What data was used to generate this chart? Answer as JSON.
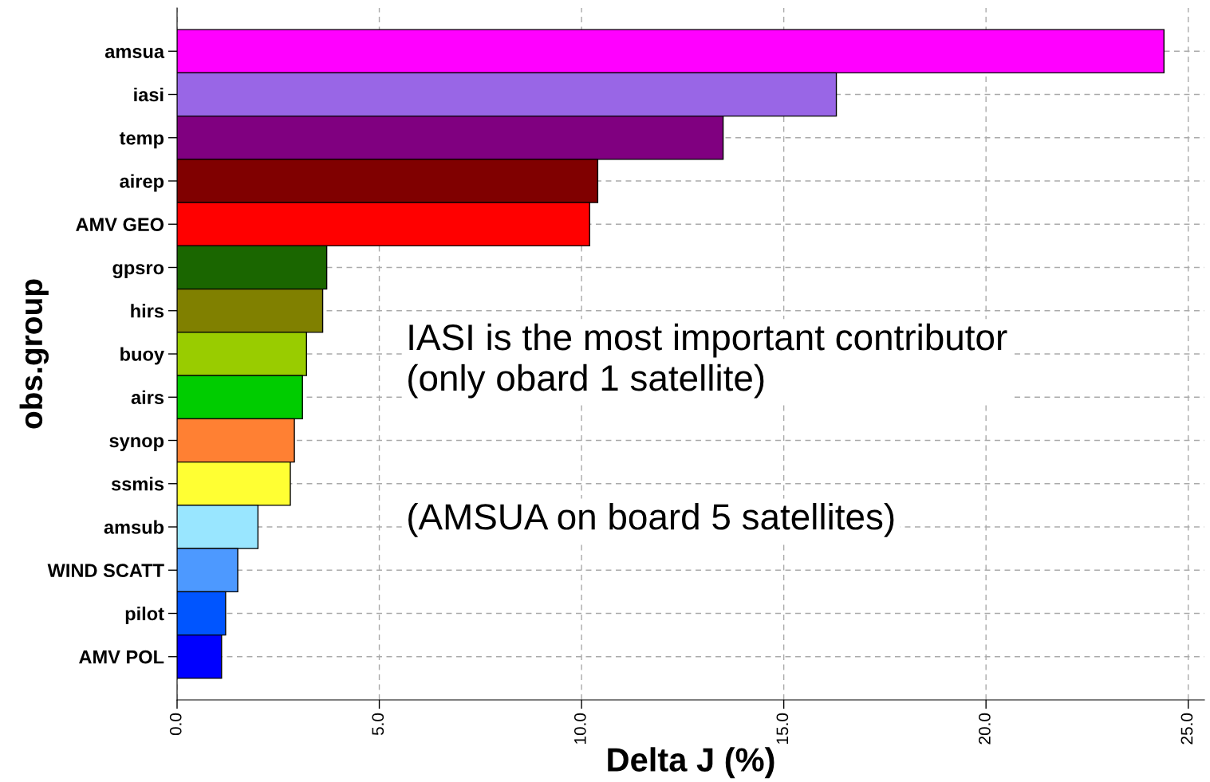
{
  "chart_data": {
    "type": "bar",
    "orientation": "horizontal",
    "xlabel": "Delta J (%)",
    "ylabel": "obs.group",
    "categories": [
      "amsua",
      "iasi",
      "temp",
      "airep",
      "AMV GEO",
      "gpsro",
      "hirs",
      "buoy",
      "airs",
      "synop",
      "ssmis",
      "amsub",
      "WIND SCATT",
      "pilot",
      "AMV POL"
    ],
    "values": [
      24.4,
      16.3,
      13.5,
      10.4,
      10.2,
      3.7,
      3.6,
      3.2,
      3.1,
      2.9,
      2.8,
      2.0,
      1.5,
      1.2,
      1.1
    ],
    "colors": [
      "#ff00ff",
      "#9966e6",
      "#800080",
      "#800000",
      "#ff0000",
      "#1a6600",
      "#808000",
      "#99cc00",
      "#00cc00",
      "#ff8033",
      "#ffff33",
      "#99e6ff",
      "#4d99ff",
      "#0055ff",
      "#0000ff"
    ],
    "xlim": [
      0,
      25.4
    ],
    "xticks": [
      {
        "value": 0,
        "label": "0.0"
      },
      {
        "value": 5,
        "label": "5.0"
      },
      {
        "value": 10,
        "label": "10.0"
      },
      {
        "value": 15,
        "label": "15.0"
      },
      {
        "value": 20,
        "label": "20.0"
      },
      {
        "value": 25,
        "label": "25.0"
      }
    ],
    "grid": true,
    "annotations": [
      "IASI is the most important contributor\n(only obard 1 satellite)",
      "(AMSUA on board 5 satellites)"
    ]
  }
}
